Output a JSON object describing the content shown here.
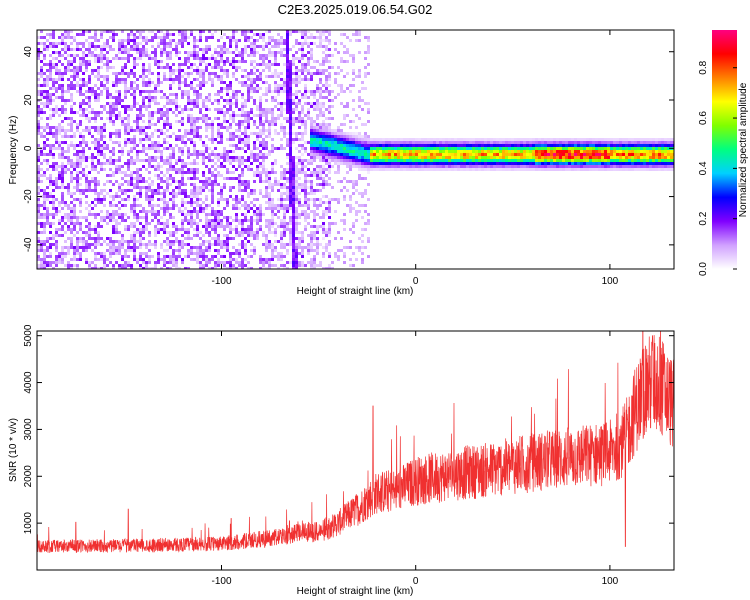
{
  "title": "C2E3.2025.019.06.54.G02",
  "chart_data": [
    {
      "type": "heatmap",
      "xlabel": "Height of straight line (km)",
      "ylabel": "Frequency (Hz)",
      "xlim": [
        -195,
        133
      ],
      "ylim": [
        -50,
        49
      ],
      "x_ticks": [
        -100,
        0,
        100
      ],
      "x_tick_labels": [
        "-100",
        "0",
        "100"
      ],
      "y_ticks": [
        -40,
        -20,
        0,
        20,
        40
      ],
      "y_tick_labels": [
        "-40",
        "-20",
        "0",
        "20",
        "40"
      ],
      "colorbar": {
        "label": "Normalized spectral amplitude",
        "range": [
          0,
          0.95
        ],
        "ticks": [
          0,
          0.2,
          0.4,
          0.6,
          0.8
        ],
        "tick_labels": [
          "0.0",
          "0.2",
          "0.4",
          "0.6",
          "0.8"
        ],
        "colormap": [
          "#ffffff",
          "#d0a0ff",
          "#8000ff",
          "#0000ff",
          "#00d0ff",
          "#00ff80",
          "#80ff00",
          "#ffff00",
          "#ff8000",
          "#ff0000",
          "#ff0080"
        ]
      },
      "features": {
        "noise_region_x": [
          -195,
          -45
        ],
        "signal_band_center_hz": -2,
        "signal_band_x": [
          -25,
          133
        ],
        "vertical_streak_x": -65
      }
    },
    {
      "type": "line",
      "xlabel": "Height of straight line (km)",
      "ylabel": "SNR (10 * v/v)",
      "xlim": [
        -195,
        133
      ],
      "ylim": [
        0,
        5100
      ],
      "x_ticks": [
        -100,
        0,
        100
      ],
      "x_tick_labels": [
        "-100",
        "0",
        "100"
      ],
      "y_ticks": [
        1000,
        2000,
        3000,
        4000,
        5000
      ],
      "y_tick_labels": [
        "1000",
        "2000",
        "3000",
        "4000",
        "5000"
      ],
      "color": "#f03030",
      "trend": {
        "x": [
          -195,
          -150,
          -100,
          -70,
          -60,
          -50,
          -40,
          -30,
          -20,
          -10,
          0,
          20,
          40,
          60,
          80,
          100,
          108,
          112,
          118,
          125,
          133
        ],
        "y": [
          500,
          520,
          560,
          700,
          850,
          800,
          1000,
          1300,
          1650,
          1700,
          1900,
          2050,
          2150,
          2300,
          2400,
          2500,
          2800,
          3300,
          3900,
          4000,
          3500
        ]
      },
      "spikes": [
        {
          "x": -22,
          "y": 3500
        },
        {
          "x": -95,
          "y": 1100
        },
        {
          "x": -148,
          "y": 1300
        },
        {
          "x": -175,
          "y": 1020
        },
        {
          "x": -65,
          "y": 1050
        },
        {
          "x": 108,
          "y": 500
        },
        {
          "x": 122,
          "y": 5000
        }
      ]
    }
  ]
}
